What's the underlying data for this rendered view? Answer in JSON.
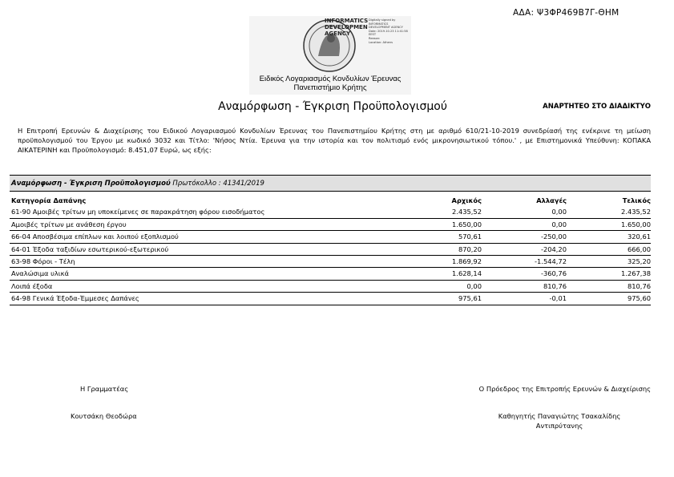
{
  "header": {
    "ada": "ΑΔΑ: Ψ3ΦΡ469Β7Γ-ΘΗΜ",
    "stamp": [
      "INFORMATICS",
      "DEVELOPMEN",
      "AGENCY"
    ],
    "stamp_small": [
      "Digitally signed by",
      "INFORMATICS",
      "DEVELOPMENT AGENCY",
      "Date: 2019.10.23 11:41:58",
      "EEST",
      "Reason:",
      "Location: Athens"
    ],
    "organization": [
      "Ειδικός Λογαριασμός Κονδυλίων Έρευνας",
      "Πανεπιστήμιο Κρήτης"
    ],
    "title": "Αναμόρφωση - Έγκριση Προϋπολογισμού",
    "posting_note": "ΑΝΑΡΤΗΤΕΟ ΣΤΟ ΔΙΑΔΙΚΤΥΟ"
  },
  "intro": "Η Επιτροπή Ερευνών & Διαχείρισης του Ειδικού Λογαριασμού Κονδυλίων Έρευνας του Πανεπιστημίου Κρήτης στη με αριθμό 610/21-10-2019 συνεδρίασή της ενέκρινε τη μείωση προϋπολογισμού του Έργου με κωδικό 3032 και Τίτλο: 'Νήσος Ντία. Έρευνα για την ιστορία και τον πολιτισμό ενός μικρονησιωτικού τόπου.' , με Επιστημονικά Υπεύθυνη: ΚΟΠΑΚΑ ΑΙΚΑΤΕΡΙΝΗ και Προϋπολογισμό: 8.451,07 Ευρώ, ως εξής:",
  "table": {
    "caption": "Αναμόρφωση - Έγκριση Προϋπολογισμού",
    "protocol": "Πρωτόκολλο : 41341/2019",
    "columns": [
      "Κατηγορία Δαπάνης",
      "Αρχικός",
      "Αλλαγές",
      "Τελικός"
    ],
    "rows": [
      [
        "61-90 Αμοιβές τρίτων μη υποκείμενες σε παρακράτηση φόρου εισοδήματος",
        "2.435,52",
        "0,00",
        "2.435,52"
      ],
      [
        "Αμοιβές τρίτων με ανάθεση έργου",
        "1.650,00",
        "0,00",
        "1.650,00"
      ],
      [
        "66-04 Αποσβέσιμα επίπλων και λοιπού εξοπλισμού",
        "570,61",
        "-250,00",
        "320,61"
      ],
      [
        "64-01 Έξοδα ταξιδίων εσωτερικού-εξωτερικού",
        "870,20",
        "-204,20",
        "666,00"
      ],
      [
        "63-98 Φόροι - Τέλη",
        "1.869,92",
        "-1.544,72",
        "325,20"
      ],
      [
        "Αναλώσιμα υλικά",
        "1.628,14",
        "-360,76",
        "1.267,38"
      ],
      [
        "Λοιπά έξοδα",
        "0,00",
        "810,76",
        "810,76"
      ],
      [
        "64-98 Γενικά Έξοδα-Έμμεσες Δαπάνες",
        "975,61",
        "-0,01",
        "975,60"
      ]
    ]
  },
  "signatures": {
    "left_role": "Η Γραμματέας",
    "left_name": "Κουτσάκη Θεοδώρα",
    "right_role": "Ο Πρόεδρος της Επιτροπής Ερευνών & Διαχείρισης",
    "right_name": "Καθηγητής Παναγιώτης Τσακαλίδης",
    "right_title": "Αντιπρύτανης"
  }
}
